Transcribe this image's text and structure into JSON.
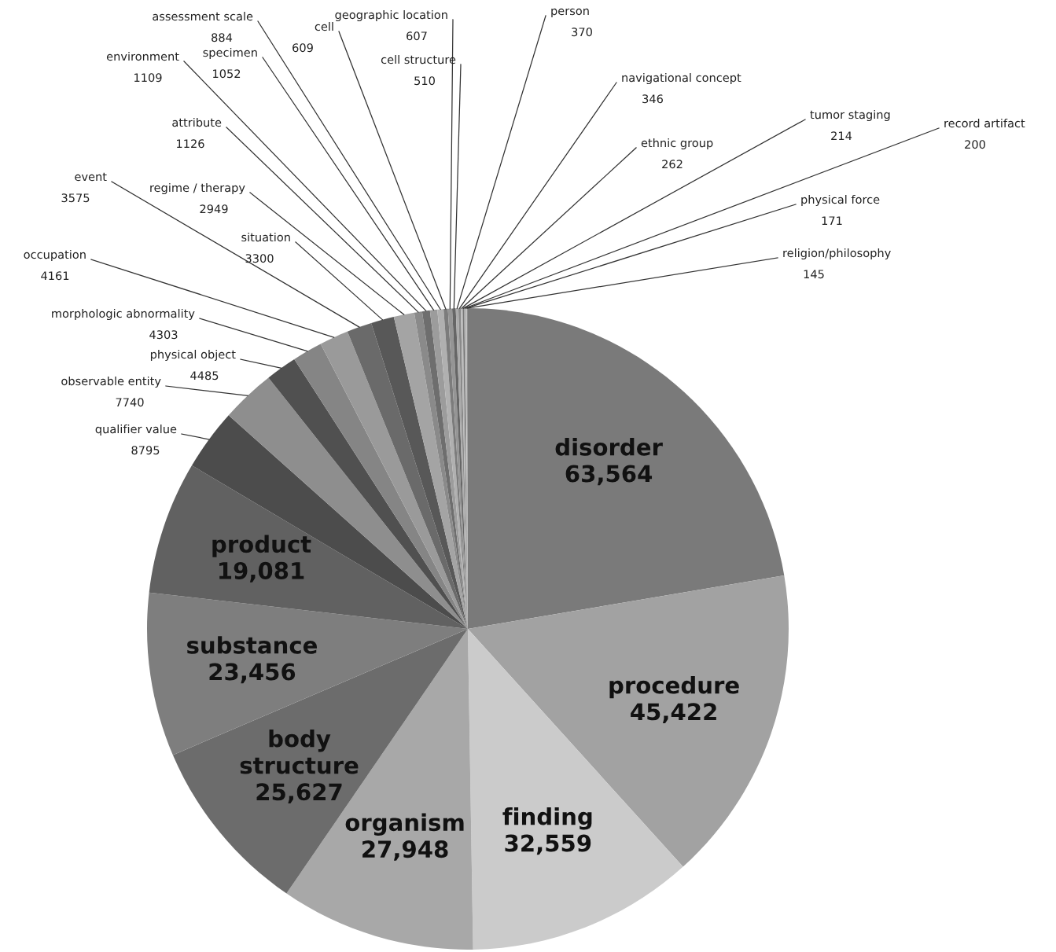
{
  "chart_data": {
    "type": "pie",
    "categories": [
      "disorder",
      "procedure",
      "finding",
      "organism",
      "body structure",
      "substance",
      "product",
      "qualifier value",
      "observable entity",
      "physical object",
      "morphologic abnormality",
      "occupation",
      "event",
      "situation",
      "regime / therapy",
      "attribute",
      "environment",
      "specimen",
      "assessment scale",
      "cell",
      "geographic location",
      "cell structure",
      "person",
      "navigational concept",
      "ethnic group",
      "tumor staging",
      "record artifact",
      "physical force",
      "religion/philosophy"
    ],
    "values": [
      63564,
      45422,
      32559,
      27948,
      25627,
      23456,
      19081,
      8795,
      7740,
      4485,
      4303,
      4161,
      3575,
      3300,
      2949,
      1126,
      1109,
      1052,
      884,
      609,
      607,
      510,
      370,
      346,
      262,
      214,
      200,
      171,
      145
    ],
    "value_labels": [
      "63,564",
      "45,422",
      "32,559",
      "27,948",
      "25,627",
      "23,456",
      "19,081",
      "8795",
      "7740",
      "4485",
      "4303",
      "4161",
      "3575",
      "3300",
      "2949",
      "1126",
      "1109",
      "1052",
      "884",
      "609",
      "607",
      "510",
      "370",
      "346",
      "262",
      "214",
      "200",
      "171",
      "145"
    ],
    "colors": [
      "#7a7a7a",
      "#a2a2a2",
      "#cbcbcb",
      "#a8a8a8",
      "#6c6c6c",
      "#7e7e7e",
      "#616161",
      "#4c4c4c",
      "#8e8e8e",
      "#505050",
      "#858585",
      "#9a9a9a",
      "#6a6a6a",
      "#585858",
      "#a4a4a4",
      "#8a8a8a",
      "#6e6e6e",
      "#9c9c9c",
      "#b0b0b0",
      "#7c7c7c",
      "#959595",
      "#666666",
      "#aaaaaa",
      "#8a8a8a",
      "#bbbbbb",
      "#777777",
      "#a0a0a0",
      "#c0c0c0",
      "#909090"
    ]
  }
}
